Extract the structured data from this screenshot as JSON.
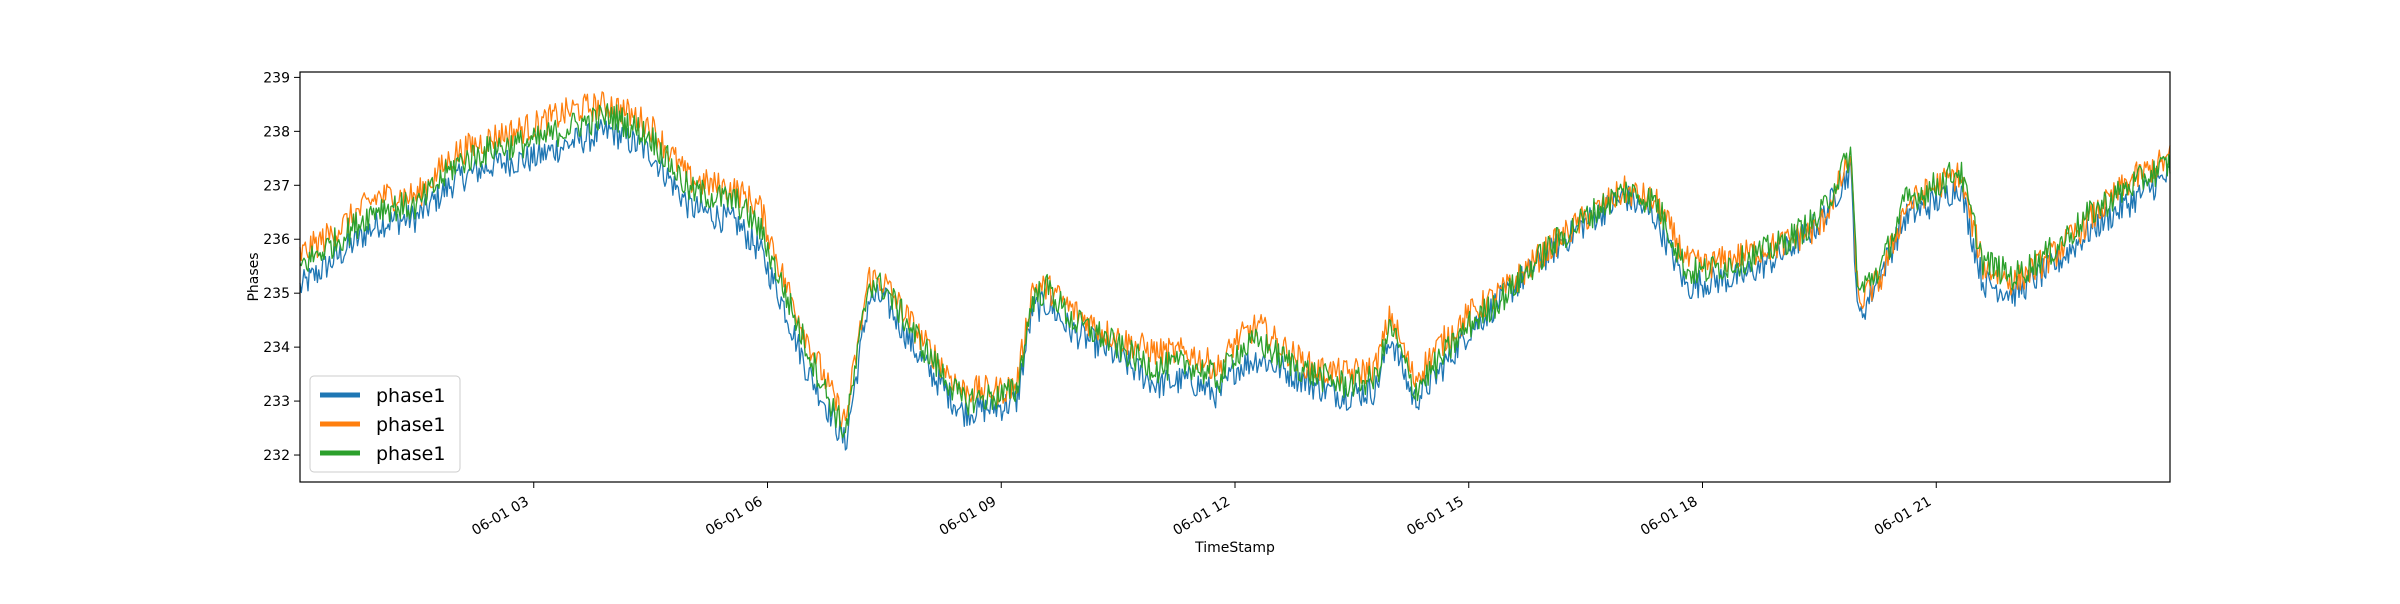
{
  "chart_data": {
    "type": "line",
    "xlabel": "TimeStamp",
    "ylabel": "Phases",
    "x_range": [
      "2023-06-01 00:00",
      "2023-06-01 24:00"
    ],
    "ylim": [
      231.5,
      239.1
    ],
    "x_ticks": [
      {
        "hour": 3,
        "label": "06-01 03"
      },
      {
        "hour": 6,
        "label": "06-01 06"
      },
      {
        "hour": 9,
        "label": "06-01 09"
      },
      {
        "hour": 12,
        "label": "06-01 12"
      },
      {
        "hour": 15,
        "label": "06-01 15"
      },
      {
        "hour": 18,
        "label": "06-01 18"
      },
      {
        "hour": 21,
        "label": "06-01 21"
      }
    ],
    "y_ticks": [
      232,
      233,
      234,
      235,
      236,
      237,
      238,
      239
    ],
    "grid": false,
    "legend_position": "lower-left",
    "series": [
      {
        "name": "phase1",
        "color": "#1f77b4",
        "x": [
          0,
          0.5,
          1,
          1.5,
          2,
          2.5,
          3,
          3.5,
          4,
          4.5,
          5,
          5.6,
          5.9,
          6.2,
          6.5,
          6.8,
          7.0,
          7.3,
          7.5,
          8,
          8.5,
          9,
          9.2,
          9.4,
          9.6,
          9.9,
          10.3,
          10.6,
          11,
          11.4,
          11.8,
          12,
          12.3,
          12.6,
          13,
          13.4,
          13.8,
          14,
          14.3,
          14.6,
          15,
          15.5,
          16,
          16.5,
          17,
          17.4,
          17.8,
          18,
          18.5,
          19,
          19.5,
          19.9,
          20,
          20.3,
          20.6,
          21,
          21.3,
          21.6,
          22,
          22.5,
          23,
          23.5,
          24
        ],
        "values": [
          235.1,
          235.7,
          236.3,
          236.4,
          237.1,
          237.4,
          237.5,
          237.8,
          238.0,
          237.6,
          236.6,
          236.3,
          235.8,
          234.8,
          233.6,
          232.8,
          232.2,
          234.9,
          234.9,
          233.7,
          232.8,
          232.9,
          233.0,
          234.7,
          234.8,
          234.3,
          234.0,
          233.7,
          233.3,
          233.4,
          233.1,
          233.6,
          233.8,
          233.6,
          233.3,
          233.1,
          233.2,
          234.2,
          233.0,
          233.5,
          234.3,
          235.0,
          235.7,
          236.3,
          236.8,
          236.4,
          235.1,
          235.2,
          235.3,
          235.7,
          236.3,
          237.3,
          234.5,
          235.4,
          236.4,
          236.7,
          237.0,
          235.2,
          235.0,
          235.5,
          236.2,
          236.7,
          237.2
        ]
      },
      {
        "name": "phase1",
        "color": "#ff7f0e",
        "x": [
          0,
          0.5,
          1,
          1.5,
          2,
          2.5,
          3,
          3.5,
          4,
          4.5,
          5,
          5.6,
          5.9,
          6.2,
          6.5,
          6.8,
          7.0,
          7.3,
          7.5,
          8,
          8.5,
          9,
          9.2,
          9.4,
          9.6,
          9.9,
          10.3,
          10.6,
          11,
          11.4,
          11.8,
          12,
          12.3,
          12.6,
          13,
          13.4,
          13.8,
          14,
          14.3,
          14.6,
          15,
          15.5,
          16,
          16.5,
          17,
          17.4,
          17.8,
          18,
          18.5,
          19,
          19.5,
          19.9,
          20,
          20.3,
          20.6,
          21,
          21.3,
          21.6,
          22,
          22.5,
          23,
          23.5,
          24
        ],
        "values": [
          235.7,
          236.2,
          236.8,
          236.8,
          237.6,
          237.9,
          238.1,
          238.4,
          238.5,
          238.1,
          237.1,
          236.9,
          236.6,
          235.3,
          234.2,
          233.2,
          232.6,
          235.3,
          235.2,
          234.1,
          233.2,
          233.2,
          233.3,
          235.1,
          235.1,
          234.7,
          234.3,
          234.1,
          233.9,
          233.9,
          233.6,
          234.1,
          234.4,
          234.0,
          233.6,
          233.5,
          233.6,
          234.6,
          233.4,
          234.0,
          234.6,
          235.1,
          235.8,
          236.4,
          236.9,
          236.7,
          235.6,
          235.5,
          235.7,
          235.9,
          236.2,
          237.5,
          234.8,
          235.3,
          236.6,
          237.0,
          237.2,
          235.5,
          235.2,
          235.7,
          236.4,
          237.1,
          237.5
        ]
      },
      {
        "name": "phase1",
        "color": "#2ca02c",
        "x": [
          0,
          0.5,
          1,
          1.5,
          2,
          2.5,
          3,
          3.5,
          4,
          4.5,
          5,
          5.6,
          5.9,
          6.2,
          6.5,
          6.8,
          7.0,
          7.3,
          7.5,
          8,
          8.5,
          9,
          9.2,
          9.4,
          9.6,
          9.9,
          10.3,
          10.6,
          11,
          11.4,
          11.8,
          12,
          12.3,
          12.6,
          13,
          13.4,
          13.8,
          14,
          14.3,
          14.6,
          15,
          15.5,
          16,
          16.5,
          17,
          17.4,
          17.8,
          18,
          18.5,
          19,
          19.5,
          19.9,
          20,
          20.3,
          20.6,
          21,
          21.3,
          21.6,
          22,
          22.5,
          23,
          23.5,
          24
        ],
        "values": [
          235.5,
          236.0,
          236.6,
          236.6,
          237.4,
          237.7,
          237.8,
          238.1,
          238.3,
          237.9,
          236.9,
          236.7,
          236.2,
          235.1,
          234.0,
          233.0,
          232.4,
          235.2,
          235.1,
          234.0,
          233.0,
          233.1,
          233.2,
          234.9,
          235.1,
          234.5,
          234.2,
          233.9,
          233.6,
          233.7,
          233.4,
          233.9,
          234.1,
          233.8,
          233.5,
          233.3,
          233.4,
          234.4,
          233.2,
          233.7,
          234.4,
          235.0,
          235.8,
          236.4,
          236.9,
          236.7,
          235.4,
          235.4,
          235.6,
          235.9,
          236.4,
          237.6,
          235.0,
          235.5,
          236.7,
          237.0,
          237.3,
          235.6,
          235.3,
          235.8,
          236.5,
          237.0,
          237.4
        ]
      }
    ]
  }
}
